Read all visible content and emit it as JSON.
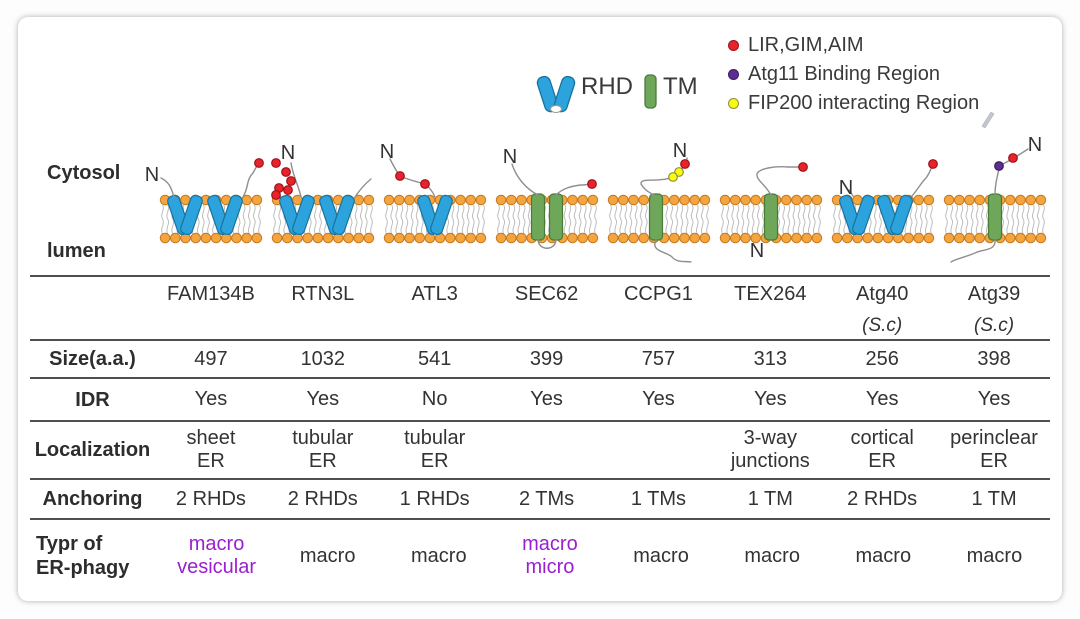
{
  "legend": {
    "motifs": [
      {
        "name": "lir-gim-aim",
        "label": "LIR,GIM,AIM",
        "color": "#e8232b",
        "stroke": "#9c1217"
      },
      {
        "name": "atg11",
        "label": "Atg11 Binding Region",
        "color": "#5c2e91",
        "stroke": "#3c1d61"
      },
      {
        "name": "fip200",
        "label": "FIP200 interacting Region",
        "color": "#f9f913",
        "stroke": "#90903a"
      }
    ],
    "rhd_label": "RHD",
    "tm_label": "TM"
  },
  "compartments": {
    "cytosol": "Cytosol",
    "lumen": "lumen"
  },
  "terminus_label": "N",
  "colors": {
    "rhd": "#2ca3dc",
    "rhd_stroke": "#17739c",
    "tm": "#6fa75a",
    "tm_stroke": "#4a7a38",
    "lipid_head": "#f5a53f",
    "lipid_head_stroke": "#c5791f",
    "lipid_tail": "#bdbdbd",
    "tail_line": "#8f8f8f",
    "purple_text": "#9b1fd2",
    "table_line": "#4f4f4f",
    "text": "#333333"
  },
  "proteins": [
    {
      "name": "FAM134B",
      "species": "",
      "size": "497",
      "idr": "Yes",
      "localization": "sheet\nER",
      "anchoring": "2 RHDs",
      "erphagy": "macro\nvesicular",
      "erphagy_purple": true,
      "diagram": {
        "anchors": [
          "RHD",
          "RHD"
        ],
        "n_dots": [],
        "c_dots": [
          "lir-gim-aim"
        ]
      }
    },
    {
      "name": "RTN3L",
      "species": "",
      "size": "1032",
      "idr": "Yes",
      "localization": "tubular\nER",
      "anchoring": "2 RHDs",
      "erphagy": "macro",
      "erphagy_purple": false,
      "diagram": {
        "anchors": [
          "RHD",
          "RHD"
        ],
        "n_dots": [
          "lir-gim-aim",
          "lir-gim-aim",
          "lir-gim-aim",
          "lir-gim-aim",
          "lir-gim-aim",
          "lir-gim-aim"
        ],
        "c_dots": []
      }
    },
    {
      "name": "ATL3",
      "species": "",
      "size": "541",
      "idr": "No",
      "localization": "tubular\nER",
      "anchoring": "1 RHDs",
      "erphagy": "macro",
      "erphagy_purple": false,
      "diagram": {
        "anchors": [
          "RHD"
        ],
        "n_dots": [
          "lir-gim-aim",
          "lir-gim-aim"
        ],
        "c_dots": []
      }
    },
    {
      "name": "SEC62",
      "species": "",
      "size": "399",
      "idr": "Yes",
      "localization": "",
      "anchoring": "2 TMs",
      "erphagy": "macro\nmicro",
      "erphagy_purple": true,
      "diagram": {
        "anchors": [
          "TM",
          "TM"
        ],
        "n_dots": [],
        "c_dots": [
          "lir-gim-aim"
        ]
      }
    },
    {
      "name": "CCPG1",
      "species": "",
      "size": "757",
      "idr": "Yes",
      "localization": "",
      "anchoring": "1 TMs",
      "erphagy": "macro",
      "erphagy_purple": false,
      "diagram": {
        "anchors": [
          "TM"
        ],
        "n_dots": [
          "lir-gim-aim",
          "fip200",
          "fip200"
        ],
        "c_dots": []
      }
    },
    {
      "name": "TEX264",
      "species": "",
      "size": "313",
      "idr": "Yes",
      "localization": "3-way\njunctions",
      "anchoring": "1 TM",
      "erphagy": "macro",
      "erphagy_purple": false,
      "diagram": {
        "anchors": [
          "TM"
        ],
        "n_dots": [],
        "c_dots": [
          "lir-gim-aim"
        ]
      }
    },
    {
      "name": "Atg40",
      "species": "(S.c)",
      "size": "256",
      "idr": "Yes",
      "localization": "cortical\nER",
      "anchoring": "2 RHDs",
      "erphagy": "macro",
      "erphagy_purple": false,
      "diagram": {
        "anchors": [
          "RHD",
          "RHD"
        ],
        "n_dots": [],
        "c_dots": [
          "lir-gim-aim"
        ]
      }
    },
    {
      "name": "Atg39",
      "species": "(S.c)",
      "size": "398",
      "idr": "Yes",
      "localization": "perinclear\nER",
      "anchoring": "1 TM",
      "erphagy": "macro",
      "erphagy_purple": false,
      "diagram": {
        "anchors": [
          "TM"
        ],
        "n_dots": [
          "lir-gim-aim",
          "atg11"
        ],
        "c_dots": []
      }
    }
  ],
  "table": {
    "rows": [
      {
        "key": "size",
        "label": "Size(a.a.)"
      },
      {
        "key": "idr",
        "label": "IDR"
      },
      {
        "key": "localization",
        "label": "Localization"
      },
      {
        "key": "anchoring",
        "label": "Anchoring"
      },
      {
        "key": "erphagy",
        "label": "Typr of\nER-phagy"
      }
    ]
  }
}
